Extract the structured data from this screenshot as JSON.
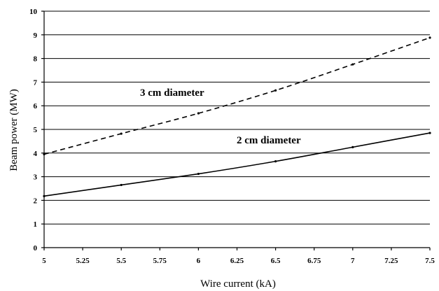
{
  "chart_data": {
    "type": "line",
    "title": "",
    "xlabel": "Wire current (kA)",
    "ylabel": "Beam power (MW)",
    "xlim": [
      5,
      7.5
    ],
    "ylim": [
      0,
      10
    ],
    "x_ticks": [
      "5",
      "5.25",
      "5.5",
      "5.75",
      "6",
      "6.25",
      "6.5",
      "6.75",
      "7",
      "7.25",
      "7.5"
    ],
    "y_ticks": [
      "0",
      "1",
      "2",
      "3",
      "4",
      "5",
      "6",
      "7",
      "8",
      "9",
      "10"
    ],
    "grid": "horizontal",
    "series": [
      {
        "name": "3 cm diameter",
        "style": "dashed",
        "color": "#000000",
        "x": [
          5,
          5.5,
          6,
          6.5,
          7,
          7.5
        ],
        "y": [
          3.95,
          4.82,
          5.68,
          6.65,
          7.75,
          8.88
        ]
      },
      {
        "name": "2 cm diameter",
        "style": "solid",
        "color": "#000000",
        "x": [
          5,
          5.5,
          6,
          6.5,
          7,
          7.5
        ],
        "y": [
          2.18,
          2.65,
          3.12,
          3.65,
          4.25,
          4.85
        ]
      }
    ],
    "annotations": [
      {
        "text": "3 cm diameter",
        "series": 0
      },
      {
        "text": "2 cm diameter",
        "series": 1
      }
    ]
  }
}
